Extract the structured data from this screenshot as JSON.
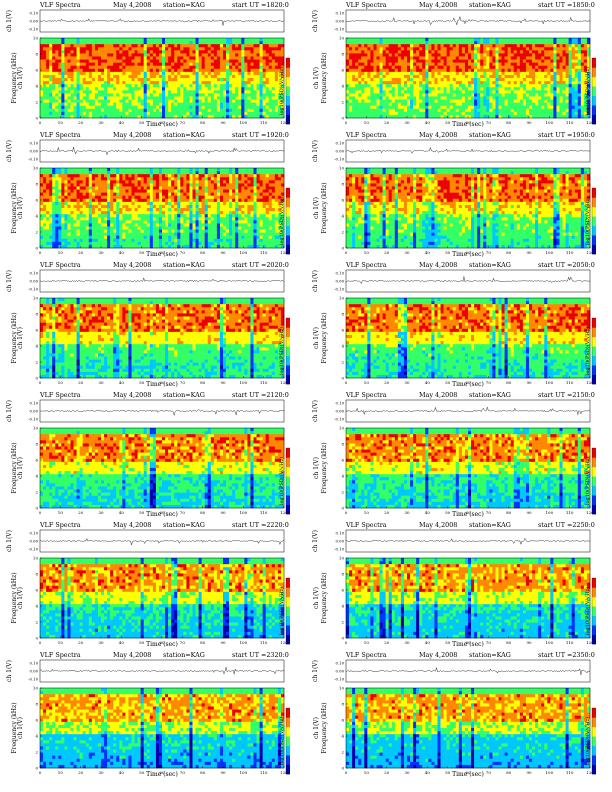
{
  "chart_data": {
    "type": "heatmap",
    "panels": [
      {
        "title": "VLF Spectra",
        "date": "May 4,2008",
        "station": "station=KAG",
        "start_label": "start  UT =1820:0",
        "channel_label": "ch 1(V)",
        "ylabel": "Frequency (kHz)",
        "xlabel": "Time (sec)",
        "colorbar_label": "log10(PSD)(V/√Hz)"
      },
      {
        "title": "VLF Spectra",
        "date": "May 4,2008",
        "station": "station=KAG",
        "start_label": "start  UT =1850:0",
        "channel_label": "ch 1(V)",
        "ylabel": "Frequency (kHz)",
        "xlabel": "Time (sec)",
        "colorbar_label": "log10(PSD)(V/√Hz)"
      },
      {
        "title": "VLF Spectra",
        "date": "May 4,2008",
        "station": "station=KAG",
        "start_label": "start  UT =1920:0",
        "channel_label": "ch 1(V)",
        "ylabel": "Frequency (kHz)",
        "xlabel": "Time (sec)",
        "colorbar_label": "log10(PSD)(V/√Hz)"
      },
      {
        "title": "VLF Spectra",
        "date": "May 4,2008",
        "station": "station=KAG",
        "start_label": "start  UT =1950:0",
        "channel_label": "ch 1(V)",
        "ylabel": "Frequency (kHz)",
        "xlabel": "Time (sec)",
        "colorbar_label": "log10(PSD)(V/√Hz)"
      },
      {
        "title": "VLF Spectra",
        "date": "May 4,2008",
        "station": "station=KAG",
        "start_label": "start  UT =2020:0",
        "channel_label": "ch 1(V)",
        "ylabel": "Frequency (kHz)",
        "xlabel": "Time (sec)",
        "colorbar_label": "log10(PSD)(V/√Hz)"
      },
      {
        "title": "VLF Spectra",
        "date": "May 4,2008",
        "station": "station=KAG",
        "start_label": "start  UT =2050:0",
        "channel_label": "ch 1(V)",
        "ylabel": "Frequency (kHz)",
        "xlabel": "Time (sec)",
        "colorbar_label": "log10(PSD)(V/√Hz)"
      },
      {
        "title": "VLF Spectra",
        "date": "May 4,2008",
        "station": "station=KAG",
        "start_label": "start  UT =2120:0",
        "channel_label": "ch 1(V)",
        "ylabel": "Frequency (kHz)",
        "xlabel": "Time (sec)",
        "colorbar_label": "log10(PSD)(V/√Hz)"
      },
      {
        "title": "VLF Spectra",
        "date": "May 4,2008",
        "station": "station=KAG",
        "start_label": "start  UT =2150:0",
        "channel_label": "ch 1(V)",
        "ylabel": "Frequency (kHz)",
        "xlabel": "Time (sec)",
        "colorbar_label": "log10(PSD)(V/√Hz)"
      },
      {
        "title": "VLF Spectra",
        "date": "May 4,2008",
        "station": "station=KAG",
        "start_label": "start  UT =2220:0",
        "channel_label": "ch 1(V)",
        "ylabel": "Frequency (kHz)",
        "xlabel": "Time (sec)",
        "colorbar_label": "log10(PSD)(V/√Hz)"
      },
      {
        "title": "VLF Spectra",
        "date": "May 4,2008",
        "station": "station=KAG",
        "start_label": "start  UT =2250:0",
        "channel_label": "ch 1(V)",
        "ylabel": "Frequency (kHz)",
        "xlabel": "Time (sec)",
        "colorbar_label": "log10(PSD)(V/√Hz)"
      },
      {
        "title": "VLF Spectra",
        "date": "May 4,2008",
        "station": "station=KAG",
        "start_label": "start  UT =2320:0",
        "channel_label": "ch 1(V)",
        "ylabel": "Frequency (kHz)",
        "xlabel": "Time (sec)",
        "colorbar_label": "log10(PSD)(V/√Hz)"
      },
      {
        "title": "VLF Spectra",
        "date": "May 4,2008",
        "station": "station=KAG",
        "start_label": "start  UT =2350:0",
        "channel_label": "ch 1(V)",
        "ylabel": "Frequency (kHz)",
        "xlabel": "Time (sec)",
        "colorbar_label": "log10(PSD)(V/√Hz)"
      }
    ],
    "x_ticks": [
      0,
      10,
      20,
      30,
      40,
      50,
      60,
      70,
      80,
      90,
      100,
      110,
      120
    ],
    "xlim": [
      0,
      120
    ],
    "freq_ticks": [
      0,
      2,
      4,
      6,
      8,
      10
    ],
    "ylim": [
      0,
      10
    ],
    "channel_ticks": [
      "0.10",
      "0.00",
      "-0.10"
    ],
    "channel_ylim": [
      -0.1,
      0.1
    ],
    "colorbar_ticks": [
      "-4",
      "-5",
      "-6",
      "-7"
    ],
    "colormap": [
      "#0000aa",
      "#0033ff",
      "#00c8ff",
      "#33ff66",
      "#ffff00",
      "#ff8800",
      "#ee0000"
    ]
  }
}
